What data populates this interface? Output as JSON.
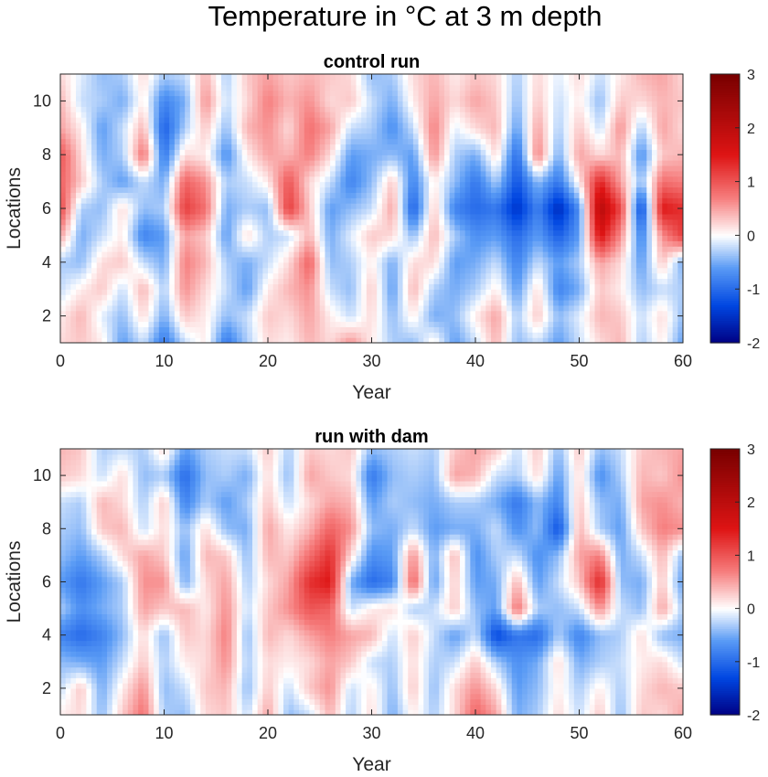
{
  "figure": {
    "title": "Temperature in °C at 3 m depth"
  },
  "chart_data": [
    {
      "type": "heatmap",
      "title": "control run",
      "xlabel": "Year",
      "ylabel": "Locations",
      "xlim": [
        0,
        60
      ],
      "ylim": [
        1,
        11
      ],
      "xticks": [
        0,
        10,
        20,
        30,
        40,
        50,
        60
      ],
      "yticks": [
        2,
        4,
        6,
        8,
        10
      ],
      "colorbar": {
        "range": [
          -2,
          3
        ],
        "ticks": [
          -2,
          -1,
          0,
          1,
          2,
          3
        ],
        "colormap": "blue-white-red"
      },
      "x": [
        0,
        2,
        4,
        6,
        8,
        10,
        12,
        14,
        16,
        18,
        20,
        22,
        24,
        26,
        28,
        30,
        32,
        34,
        36,
        38,
        40,
        42,
        44,
        46,
        48,
        50,
        52,
        54,
        56,
        58,
        60
      ],
      "y": [
        1,
        2,
        3,
        4,
        5,
        6,
        7,
        8,
        9,
        10,
        11
      ],
      "z": [
        [
          0.2,
          0.3,
          0.1,
          -0.6,
          -0.2,
          -0.9,
          -0.2,
          0.1,
          -0.9,
          -0.3,
          0.2,
          0.1,
          0.4,
          0.2,
          0.6,
          0.1,
          -0.3,
          -0.4,
          0.1,
          -0.6,
          -0.2,
          0.4,
          -0.4,
          -0.2,
          -0.6,
          -0.2,
          0.2,
          0.4,
          -0.3,
          0.1,
          -0.6
        ],
        [
          0.1,
          0.4,
          -0.1,
          -0.4,
          0.2,
          -0.5,
          0.3,
          0.1,
          -0.4,
          -0.2,
          0.3,
          0.2,
          0.5,
          0.1,
          -0.2,
          0.2,
          -0.4,
          0.1,
          -0.5,
          -0.4,
          0.1,
          0.5,
          -0.3,
          0.3,
          -0.4,
          -0.1,
          0.4,
          0.3,
          -0.2,
          0.2,
          -0.4
        ],
        [
          -0.2,
          0.1,
          0.3,
          -0.2,
          0.4,
          -0.3,
          0.6,
          0.2,
          -0.2,
          -0.6,
          0.1,
          0.4,
          0.6,
          -0.2,
          -0.4,
          0.3,
          -0.6,
          0.4,
          -0.3,
          -0.5,
          -0.3,
          0.1,
          -0.6,
          0.2,
          -0.8,
          -0.5,
          0.3,
          0.1,
          -0.4,
          -0.2,
          -0.3
        ],
        [
          -0.3,
          -0.4,
          0.2,
          0.3,
          -0.2,
          -0.5,
          0.7,
          0.4,
          -0.3,
          -0.5,
          -0.2,
          0.2,
          0.9,
          -0.4,
          -0.3,
          0.1,
          -0.5,
          0.2,
          0.2,
          -0.6,
          -0.5,
          -0.2,
          -0.8,
          -0.2,
          -0.6,
          -0.3,
          0.5,
          0.2,
          -0.6,
          0.3,
          -0.5
        ],
        [
          0.5,
          -0.5,
          -0.2,
          0.1,
          -0.8,
          -0.6,
          0.5,
          0.3,
          -0.6,
          0.2,
          -0.3,
          -0.2,
          0.4,
          -0.5,
          -0.1,
          0.3,
          0.2,
          -0.4,
          0.4,
          -0.3,
          -0.7,
          -0.6,
          -1.0,
          -0.6,
          -1.1,
          -0.6,
          1.6,
          0.6,
          -0.8,
          0.6,
          1.2
        ],
        [
          1.1,
          -0.3,
          -0.4,
          0.2,
          -0.4,
          -0.3,
          1.2,
          0.8,
          -0.5,
          -0.3,
          -0.4,
          1.2,
          0.3,
          -0.6,
          -0.4,
          -0.2,
          0.5,
          -1.1,
          0.3,
          -0.8,
          -1.0,
          -0.9,
          -1.5,
          -0.8,
          -1.6,
          -0.7,
          2.1,
          1.1,
          -1.3,
          1.5,
          1.3
        ],
        [
          0.9,
          0.3,
          -0.3,
          -0.6,
          -0.2,
          -0.5,
          0.9,
          0.6,
          -0.3,
          -0.2,
          0.1,
          1.0,
          0.2,
          -0.2,
          -0.8,
          -0.4,
          0.3,
          -0.8,
          0.1,
          -0.4,
          -0.9,
          -0.3,
          -1.2,
          -0.4,
          -0.9,
          0.1,
          1.4,
          0.5,
          -0.4,
          0.8,
          0.7
        ],
        [
          1.0,
          0.2,
          -0.5,
          -0.3,
          0.8,
          -0.9,
          0.2,
          0.1,
          -0.7,
          0.1,
          0.5,
          0.4,
          0.7,
          0.2,
          -0.6,
          -0.5,
          -0.4,
          -0.6,
          0.6,
          -0.3,
          -0.5,
          0.2,
          -1.0,
          0.7,
          -0.5,
          0.5,
          0.2,
          0.4,
          -0.7,
          0.3,
          0.4
        ],
        [
          0.5,
          0.1,
          -0.6,
          -0.2,
          0.4,
          -1.1,
          -0.3,
          0.3,
          -0.4,
          0.4,
          0.6,
          0.2,
          0.8,
          0.5,
          -0.2,
          -0.3,
          -0.7,
          -0.2,
          0.7,
          -0.1,
          0.2,
          0.4,
          -0.6,
          0.5,
          -0.3,
          0.3,
          -0.2,
          0.6,
          -0.3,
          0.5,
          0.2
        ],
        [
          0.4,
          -0.2,
          -0.3,
          -0.5,
          0.1,
          -0.8,
          -0.5,
          0.6,
          -0.2,
          0.2,
          0.7,
          0.4,
          0.6,
          0.2,
          0.3,
          -0.2,
          -0.5,
          0.1,
          0.5,
          0.2,
          0.5,
          0.3,
          -0.4,
          0.3,
          -0.2,
          0.1,
          -0.4,
          0.3,
          0.2,
          0.4,
          0.3
        ],
        [
          0.2,
          -0.1,
          -0.4,
          -0.3,
          0.2,
          -0.3,
          -0.2,
          0.4,
          -0.3,
          0.3,
          0.5,
          0.3,
          0.4,
          0.3,
          0.2,
          -0.4,
          -0.3,
          0.2,
          0.4,
          0.1,
          0.3,
          0.2,
          -0.3,
          0.2,
          -0.1,
          0.2,
          -0.2,
          0.1,
          0.4,
          0.5,
          0.2
        ]
      ]
    },
    {
      "type": "heatmap",
      "title": "run with dam",
      "xlabel": "Year",
      "ylabel": "Locations",
      "xlim": [
        0,
        60
      ],
      "ylim": [
        1,
        11
      ],
      "xticks": [
        0,
        10,
        20,
        30,
        40,
        50,
        60
      ],
      "yticks": [
        2,
        4,
        6,
        8,
        10
      ],
      "colorbar": {
        "range": [
          -2,
          3
        ],
        "ticks": [
          -2,
          -1,
          0,
          1,
          2,
          3
        ],
        "colormap": "blue-white-red"
      },
      "x": [
        0,
        2,
        4,
        6,
        8,
        10,
        12,
        14,
        16,
        18,
        20,
        22,
        24,
        26,
        28,
        30,
        32,
        34,
        36,
        38,
        40,
        42,
        44,
        46,
        48,
        50,
        52,
        54,
        56,
        58,
        60
      ],
      "y": [
        1,
        2,
        3,
        4,
        5,
        6,
        7,
        8,
        9,
        10,
        11
      ],
      "z": [
        [
          0.1,
          0.2,
          -0.4,
          0.3,
          0.8,
          -0.3,
          -0.4,
          0.2,
          0.3,
          -0.2,
          0.5,
          -0.4,
          -0.2,
          0.4,
          -0.3,
          0.2,
          -0.5,
          0.1,
          -0.3,
          0.2,
          0.9,
          0.5,
          -0.5,
          -0.3,
          0.2,
          -0.2,
          0.3,
          -0.4,
          0.3,
          0.2,
          0.5
        ],
        [
          -0.2,
          0.3,
          -0.5,
          0.1,
          0.6,
          -0.4,
          -0.2,
          0.3,
          0.4,
          -0.4,
          0.3,
          -0.2,
          0.3,
          0.6,
          -0.2,
          0.1,
          -0.4,
          0.3,
          -0.4,
          0.2,
          0.6,
          0.2,
          -0.6,
          -0.4,
          0.1,
          -0.3,
          0.1,
          -0.3,
          0.2,
          0.4,
          0.3
        ],
        [
          -0.4,
          -0.5,
          -0.6,
          -0.2,
          0.3,
          -0.3,
          0.1,
          0.2,
          0.6,
          -0.3,
          0.2,
          0.1,
          0.2,
          0.5,
          0.3,
          -0.2,
          -0.3,
          0.2,
          -0.3,
          -0.2,
          0.3,
          -0.3,
          -0.7,
          -0.5,
          0.2,
          -0.5,
          -0.3,
          -0.2,
          0.1,
          0.2,
          -0.2
        ],
        [
          -0.8,
          -1.0,
          -0.8,
          -0.4,
          0.2,
          -0.4,
          0.3,
          0.2,
          0.7,
          -0.4,
          0.4,
          0.2,
          0.5,
          0.7,
          0.5,
          0.4,
          -0.2,
          0.3,
          -0.2,
          -0.6,
          -0.2,
          -1.3,
          -0.9,
          -1.0,
          -0.3,
          -0.8,
          -0.4,
          -0.3,
          0.2,
          -0.4,
          -0.5
        ],
        [
          -0.3,
          -0.7,
          -0.5,
          -0.3,
          0.5,
          0.3,
          0.4,
          0.1,
          0.6,
          -0.2,
          0.3,
          0.6,
          1.0,
          0.9,
          -0.2,
          0.1,
          0.2,
          -0.3,
          -0.2,
          0.3,
          -0.4,
          -0.6,
          0.8,
          -0.3,
          -0.4,
          -0.2,
          0.6,
          -0.2,
          -0.4,
          0.5,
          -0.3
        ],
        [
          -0.6,
          -0.9,
          -0.6,
          -0.3,
          0.6,
          0.6,
          -0.5,
          0.2,
          0.5,
          -0.3,
          0.2,
          0.5,
          1.3,
          1.5,
          -0.5,
          -1.0,
          -0.8,
          0.9,
          -0.6,
          0.3,
          -0.6,
          -0.5,
          0.4,
          -0.6,
          -0.2,
          0.3,
          1.4,
          -0.4,
          -0.5,
          0.3,
          -0.6
        ],
        [
          -0.4,
          -0.6,
          -0.3,
          0.2,
          0.5,
          0.3,
          -0.6,
          0.4,
          0.3,
          -0.4,
          0.4,
          0.3,
          0.8,
          1.3,
          0.2,
          -0.7,
          -0.6,
          0.6,
          -0.5,
          0.4,
          -0.7,
          -0.3,
          -0.2,
          -0.7,
          -0.4,
          0.5,
          0.7,
          -0.5,
          -0.2,
          0.4,
          -0.4
        ],
        [
          -0.3,
          -0.4,
          0.3,
          0.4,
          -0.2,
          0.2,
          -0.4,
          0.2,
          -0.4,
          -0.5,
          0.5,
          0.1,
          0.4,
          0.9,
          0.6,
          -0.4,
          -0.5,
          -0.2,
          -0.6,
          -0.5,
          -0.5,
          -0.2,
          -0.7,
          -0.4,
          -1.2,
          0.4,
          -0.3,
          -0.6,
          0.3,
          0.7,
          0.6
        ],
        [
          -0.2,
          -0.3,
          0.4,
          0.2,
          -0.3,
          0.3,
          -0.8,
          -0.3,
          -0.6,
          -0.3,
          0.3,
          -0.2,
          0.2,
          0.5,
          0.4,
          -0.6,
          -0.3,
          -0.4,
          -0.5,
          -0.3,
          -0.3,
          -0.5,
          -0.9,
          -0.4,
          -0.8,
          0.3,
          -0.4,
          -0.5,
          0.5,
          0.6,
          0.4
        ],
        [
          0.3,
          0.2,
          -0.2,
          0.2,
          -0.4,
          -0.3,
          -1.0,
          -0.4,
          -0.3,
          -0.5,
          0.2,
          -0.4,
          0.5,
          0.3,
          0.2,
          -0.9,
          -0.4,
          -0.3,
          -0.4,
          0.5,
          0.4,
          -0.2,
          -0.3,
          0.2,
          -0.6,
          0.2,
          -0.7,
          -0.3,
          0.4,
          0.3,
          0.6
        ],
        [
          0.4,
          0.3,
          -0.3,
          -0.2,
          -0.3,
          0.2,
          -0.6,
          -0.3,
          -0.2,
          -0.2,
          0.3,
          -0.3,
          0.3,
          0.2,
          0.3,
          -0.4,
          -0.3,
          -0.2,
          -0.3,
          0.3,
          0.5,
          0.3,
          -0.2,
          0.3,
          -0.4,
          0.3,
          -0.4,
          -0.2,
          0.3,
          0.4,
          0.5
        ]
      ]
    }
  ]
}
